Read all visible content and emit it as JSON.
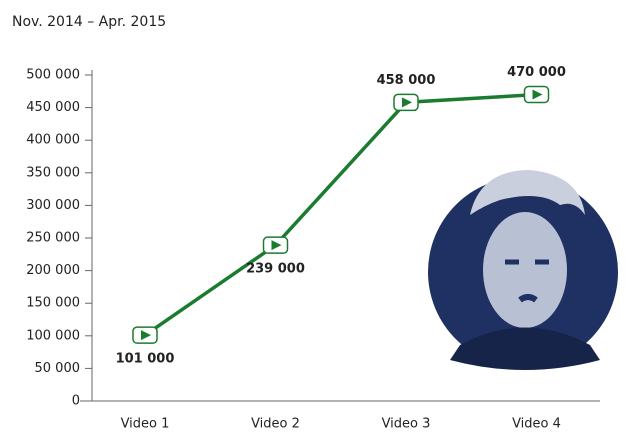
{
  "chart_data": {
    "type": "line",
    "subtitle": "Nov. 2014 – Apr. 2015",
    "categories": [
      "Video 1",
      "Video 2",
      "Video 3",
      "Video 4"
    ],
    "series": [
      {
        "color": "#1b7b2e",
        "values": [
          101000,
          239000,
          458000,
          470000
        ],
        "value_labels": [
          "101 000",
          "239 000",
          "458 000",
          "470 000"
        ]
      }
    ],
    "ylim": [
      0,
      500000
    ],
    "yticks": [
      0,
      {
        "value": 50000,
        "label": "50 000"
      },
      {
        "value": 100000,
        "label": "100 000"
      },
      {
        "value": 150000,
        "label": "150 000"
      },
      {
        "value": 200000,
        "label": "200 000"
      },
      {
        "value": 250000,
        "label": "250 000"
      },
      {
        "value": 300000,
        "label": "300 000"
      },
      {
        "value": 350000,
        "label": "350 000"
      },
      {
        "value": 400000,
        "label": "400 000"
      },
      {
        "value": 450000,
        "label": "450 000"
      },
      {
        "value": 500000,
        "label": "500 000"
      }
    ]
  }
}
